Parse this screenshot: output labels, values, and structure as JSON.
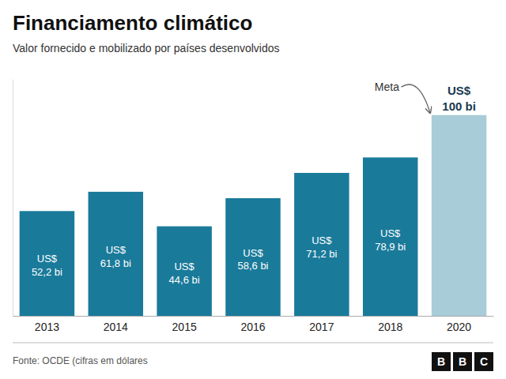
{
  "chart_data": {
    "type": "bar",
    "title": "Financiamento climático",
    "subtitle": "Valor fornecido e mobilizado por países desenvolvidos",
    "categories": [
      "2013",
      "2014",
      "2015",
      "2016",
      "2017",
      "2018",
      "2020"
    ],
    "values": [
      52.2,
      61.8,
      44.6,
      58.6,
      71.2,
      78.9,
      100
    ],
    "value_labels": [
      "US$\n52,2 bi",
      "US$\n61,8 bi",
      "US$\n44,6 bi",
      "US$\n58,6 bi",
      "US$\n71,2 bi",
      "US$\n78,9 bi",
      "US$\n100 bi"
    ],
    "colors": [
      "#1a7a9a",
      "#1a7a9a",
      "#1a7a9a",
      "#1a7a9a",
      "#1a7a9a",
      "#1a7a9a",
      "#a8ccd8"
    ],
    "data_labels": true,
    "ylim": [
      0,
      118
    ],
    "tick_labels": "x",
    "annotations": [
      {
        "text": "Meta"
      }
    ],
    "source": "Fonte: OCDE (cifras em dólares",
    "logo": "BBC"
  }
}
